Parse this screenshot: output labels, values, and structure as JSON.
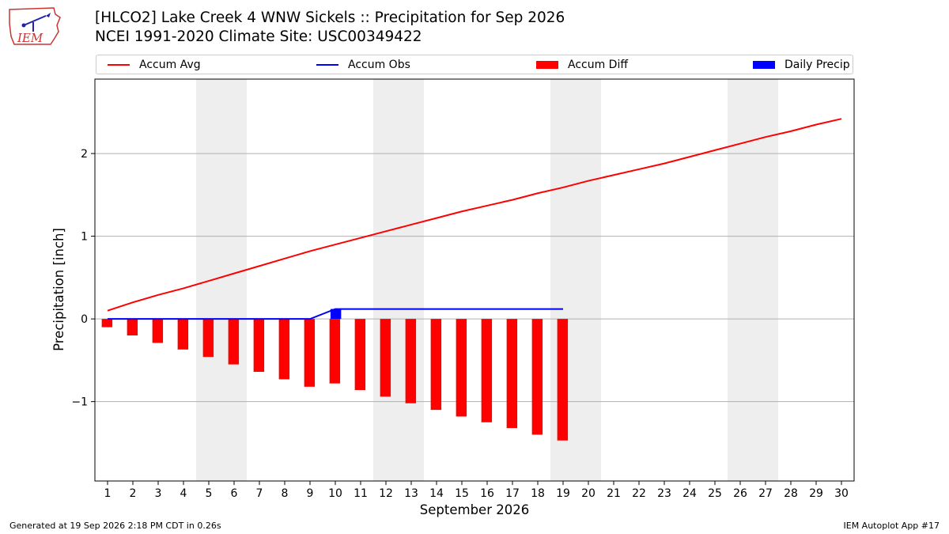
{
  "title": {
    "line1": "[HLCO2] Lake Creek 4 WNW Sickels :: Precipitation for Sep 2026",
    "line2": "NCEI 1991-2020 Climate Site: USC00349422"
  },
  "logo": {
    "text": "IEM"
  },
  "legend": [
    {
      "label": "Accum Avg",
      "kind": "line",
      "color": "#ff0000"
    },
    {
      "label": "Accum Obs",
      "kind": "line",
      "color": "#0000ff"
    },
    {
      "label": "Accum Diff",
      "kind": "patch",
      "color": "#ff0000"
    },
    {
      "label": "Daily Precip",
      "kind": "patch",
      "color": "#0000ff"
    }
  ],
  "footer": {
    "left": "Generated at 19 Sep 2026 2:18 PM CDT in 0.26s",
    "right": "IEM Autoplot App #17"
  },
  "chart_data": {
    "type": "bar",
    "xlabel": "September 2026",
    "ylabel": "Precipitation [inch]",
    "x": [
      1,
      2,
      3,
      4,
      5,
      6,
      7,
      8,
      9,
      10,
      11,
      12,
      13,
      14,
      15,
      16,
      17,
      18,
      19,
      20,
      21,
      22,
      23,
      24,
      25,
      26,
      27,
      28,
      29,
      30
    ],
    "xticklabels": [
      "1",
      "2",
      "3",
      "4",
      "5",
      "6",
      "7",
      "8",
      "9",
      "10",
      "11",
      "12",
      "13",
      "14",
      "15",
      "16",
      "17",
      "18",
      "19",
      "20",
      "21",
      "22",
      "23",
      "24",
      "25",
      "26",
      "27",
      "28",
      "29",
      "30"
    ],
    "yticks": [
      -1,
      0,
      1,
      2
    ],
    "yticklabels": [
      "−1",
      "0",
      "1",
      "2"
    ],
    "ylim": [
      -1.96,
      2.9
    ],
    "xlim": [
      0.5,
      30.5
    ],
    "grid": "horizontal",
    "weekend_shading": [
      [
        4.5,
        6.5
      ],
      [
        11.5,
        13.5
      ],
      [
        18.5,
        20.5
      ],
      [
        25.5,
        27.5
      ]
    ],
    "series": [
      {
        "name": "Accum Avg",
        "kind": "line",
        "color": "#ff0000",
        "x": [
          1,
          2,
          3,
          4,
          5,
          6,
          7,
          8,
          9,
          10,
          11,
          12,
          13,
          14,
          15,
          16,
          17,
          18,
          19,
          20,
          21,
          22,
          23,
          24,
          25,
          26,
          27,
          28,
          29,
          30
        ],
        "values": [
          0.1,
          0.2,
          0.29,
          0.37,
          0.46,
          0.55,
          0.64,
          0.73,
          0.82,
          0.9,
          0.98,
          1.06,
          1.14,
          1.22,
          1.3,
          1.37,
          1.44,
          1.52,
          1.59,
          1.67,
          1.74,
          1.81,
          1.88,
          1.96,
          2.04,
          2.12,
          2.2,
          2.27,
          2.35,
          2.42
        ]
      },
      {
        "name": "Accum Obs",
        "kind": "line",
        "color": "#0000ff",
        "x": [
          1,
          2,
          3,
          4,
          5,
          6,
          7,
          8,
          9,
          10,
          11,
          12,
          13,
          14,
          15,
          16,
          17,
          18,
          19
        ],
        "values": [
          0,
          0,
          0,
          0,
          0,
          0,
          0,
          0,
          0,
          0.12,
          0.12,
          0.12,
          0.12,
          0.12,
          0.12,
          0.12,
          0.12,
          0.12,
          0.12
        ]
      },
      {
        "name": "Accum Diff",
        "kind": "bar",
        "color": "#ff0000",
        "x": [
          1,
          2,
          3,
          4,
          5,
          6,
          7,
          8,
          9,
          10,
          11,
          12,
          13,
          14,
          15,
          16,
          17,
          18,
          19
        ],
        "values": [
          -0.1,
          -0.2,
          -0.29,
          -0.37,
          -0.46,
          -0.55,
          -0.64,
          -0.73,
          -0.82,
          -0.78,
          -0.86,
          -0.94,
          -1.02,
          -1.1,
          -1.18,
          -1.25,
          -1.32,
          -1.4,
          -1.47
        ]
      },
      {
        "name": "Daily Precip",
        "kind": "bar",
        "color": "#0000ff",
        "x": [
          10
        ],
        "values": [
          0.12
        ]
      }
    ]
  }
}
